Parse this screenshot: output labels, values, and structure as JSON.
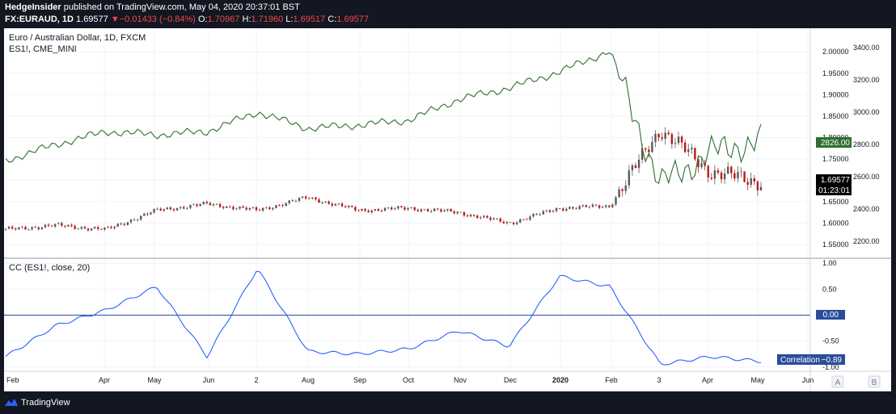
{
  "header": {
    "author": "HedgeInsider",
    "published": " published on TradingView.com, May 04, 2020 20:37:01 BST",
    "symbol": "FX:EURAUD, 1D",
    "price": "1.69577",
    "change_arrow": "▼",
    "change": "−0.01433 (−0.84%)",
    "o_label": "O:",
    "o_value": "1.70967",
    "h_label": "H:",
    "h_value": "1.71960",
    "l_label": "L:",
    "l_value": "1.69517",
    "c_label": "C:",
    "c_value": "1.69577"
  },
  "footer": {
    "brand": "TradingView"
  },
  "colors": {
    "candle_up": "#5a5a5a",
    "candle_down": "#b71c1c",
    "es": "#2f6e2f",
    "cc": "#2962ff",
    "zero": "#2a4d9b",
    "bg": "#131722"
  },
  "chart_data": [
    {
      "type": "candlestick",
      "title": "Euro / Australian Dollar, 1D, FXCM",
      "series_name": "FX:EURAUD",
      "yaxis": "right",
      "ylim": [
        1.52,
        2.04
      ],
      "yticks": [
        "2.00000",
        "1.95000",
        "1.90000",
        "1.85000",
        "1.80000",
        "1.75000",
        "1.70000",
        "1.65000",
        "1.60000",
        "1.55000"
      ],
      "last_value_label": "1.69577",
      "countdown_label": "01:23:01",
      "x": [
        "2019-02",
        "2019-03",
        "2019-04",
        "2019-05",
        "2019-06",
        "2019-07",
        "2019-08",
        "2019-09",
        "2019-10",
        "2019-11",
        "2019-12",
        "2020-01",
        "2020-02",
        "2020-03",
        "2020-04",
        "2020-05"
      ],
      "close": [
        1.585,
        1.595,
        1.585,
        1.63,
        1.645,
        1.63,
        1.66,
        1.63,
        1.635,
        1.625,
        1.6,
        1.635,
        1.64,
        1.82,
        1.72,
        1.69577
      ]
    },
    {
      "type": "line",
      "series_name": "ES1!, CME_MINI",
      "yaxis": "right",
      "ylim": [
        2100,
        3480
      ],
      "yticks": [
        "3400.00",
        "3200.00",
        "3000.00",
        "2800.00",
        "2600.00",
        "2400.00",
        "2200.00"
      ],
      "last_value_label": "2826.00",
      "x": [
        "2019-02",
        "2019-03",
        "2019-04",
        "2019-05",
        "2019-06",
        "2019-07",
        "2019-08",
        "2019-09",
        "2019-10",
        "2019-11",
        "2019-12",
        "2020-01",
        "2020-02",
        "2020-03",
        "2020-04",
        "2020-05"
      ],
      "values": [
        2700,
        2800,
        2880,
        2860,
        2880,
        3000,
        2900,
        2920,
        2950,
        3080,
        3150,
        3250,
        3380,
        2550,
        2750,
        2826
      ]
    },
    {
      "type": "line",
      "title": "CC (ES1!, close, 20)",
      "series_name": "Correlation",
      "ylim": [
        -1.05,
        1.05
      ],
      "yticks": [
        "1.00",
        "0.50",
        "0.00",
        "-0.50",
        "-1.00"
      ],
      "zero_label": "0.00",
      "last_value_label": "−0.89",
      "legend_label": "Correlation",
      "x": [
        "2019-02",
        "2019-03",
        "2019-04",
        "2019-05",
        "2019-06",
        "2019-07",
        "2019-08",
        "2019-09",
        "2019-10",
        "2019-11",
        "2019-12",
        "2020-01",
        "2020-02",
        "2020-03",
        "2020-04",
        "2020-05"
      ],
      "values": [
        -0.8,
        -0.2,
        0.1,
        0.55,
        -0.8,
        0.9,
        -0.7,
        -0.75,
        -0.65,
        -0.3,
        -0.6,
        0.75,
        0.55,
        -0.95,
        -0.8,
        -0.89
      ]
    }
  ],
  "xaxis": {
    "labels": [
      "Feb",
      "Apr",
      "May",
      "Jun",
      "2",
      "Aug",
      "Sep",
      "Oct",
      "Nov",
      "Dec",
      "2020",
      "Feb",
      "3",
      "Apr",
      "May",
      "Jun"
    ],
    "buttons": [
      "A",
      "B"
    ]
  }
}
